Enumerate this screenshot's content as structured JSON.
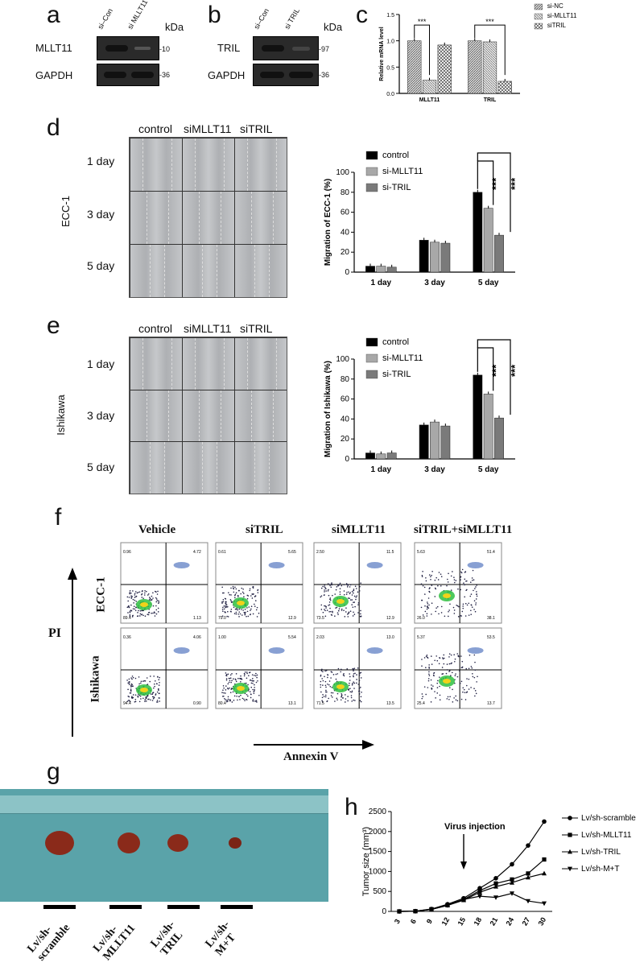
{
  "panels": {
    "a": "a",
    "b": "b",
    "c": "c",
    "d": "d",
    "e": "e",
    "f": "f",
    "g": "g",
    "h": "h"
  },
  "wb_a": {
    "lanes": [
      "si–Con",
      "si MLLT11"
    ],
    "kda": "kDa",
    "rows": [
      {
        "label": "MLLT11",
        "marker": "-10"
      },
      {
        "label": "GAPDH",
        "marker": "-36"
      }
    ]
  },
  "wb_b": {
    "lanes": [
      "si–Con",
      "si TRIL"
    ],
    "kda": "kDa",
    "rows": [
      {
        "label": "TRIL",
        "marker": "-97"
      },
      {
        "label": "GAPDH",
        "marker": "-36"
      }
    ]
  },
  "scratch_d": {
    "cols": [
      "control",
      "siMLLT11",
      "siTRIL"
    ],
    "rows": [
      "1 day",
      "3 day",
      "5 day"
    ],
    "side": "ECC-1"
  },
  "scratch_e": {
    "cols": [
      "control",
      "siMLLT11",
      "siTRIL"
    ],
    "rows": [
      "1 day",
      "3 day",
      "5 day"
    ],
    "side": "Ishikawa"
  },
  "flow": {
    "cols": [
      "Vehicle",
      "siTRIL",
      "siMLLT11",
      "siTRIL+siMLLT11"
    ],
    "rows": [
      "ECC-1",
      "Ishikawa"
    ],
    "yaxis": "PI",
    "xaxis": "Annexin V",
    "quadrants": [
      [
        [
          "0.96",
          "4.72",
          "1.13",
          "89.4"
        ],
        [
          "0.61",
          "5.65",
          "12.9",
          "79.0"
        ],
        [
          "2.50",
          "11.5",
          "12.9",
          "73.5"
        ],
        [
          "5.63",
          "51.4",
          "38.1",
          "26.0"
        ]
      ],
      [
        [
          "0.36",
          "4.06",
          "0.90",
          "94.4"
        ],
        [
          "1.00",
          "5.54",
          "13.1",
          "80.4"
        ],
        [
          "2.03",
          "13.0",
          "13.5",
          "71.5"
        ],
        [
          "5.37",
          "53.5",
          "13.7",
          "25.4"
        ]
      ]
    ]
  },
  "tumors": {
    "labels": [
      "Lv/sh-\nscramble",
      "Lv/sh-\nMLLT11",
      "Lv/sh-\nTRIL",
      "Lv/sh-\nM+T"
    ]
  },
  "chart_data": [
    {
      "id": "c",
      "type": "bar",
      "categories": [
        "MLLT11",
        "TRIL"
      ],
      "ylabel": "Relative mRNA level",
      "ylim": [
        0,
        1.5
      ],
      "series": [
        {
          "name": "si-NC",
          "values": [
            1.0,
            1.0
          ]
        },
        {
          "name": "si-MLLT11",
          "values": [
            0.25,
            0.98
          ]
        },
        {
          "name": "siTRIL",
          "values": [
            0.92,
            0.23
          ]
        }
      ],
      "annotations": [
        "***",
        "***"
      ]
    },
    {
      "id": "d",
      "type": "bar",
      "categories": [
        "1 day",
        "3 day",
        "5 day"
      ],
      "ylabel": "Migration of ECC-1 (%)",
      "ylim": [
        0,
        100
      ],
      "series": [
        {
          "name": "control",
          "values": [
            6,
            32,
            80
          ]
        },
        {
          "name": "si-MLLT11",
          "values": [
            6,
            30,
            64
          ]
        },
        {
          "name": "si-TRIL",
          "values": [
            5,
            29,
            37
          ]
        }
      ],
      "annotations": [
        "***",
        "***"
      ]
    },
    {
      "id": "e",
      "type": "bar",
      "categories": [
        "1 day",
        "3 day",
        "5 day"
      ],
      "ylabel": "Migration of Ishikawa (%)",
      "ylim": [
        0,
        100
      ],
      "series": [
        {
          "name": "control",
          "values": [
            6,
            34,
            84
          ]
        },
        {
          "name": "si-MLLT11",
          "values": [
            5,
            37,
            65
          ]
        },
        {
          "name": "si-TRIL",
          "values": [
            6,
            33,
            41
          ]
        }
      ],
      "annotations": [
        "***",
        "***"
      ]
    },
    {
      "id": "h",
      "type": "line",
      "x": [
        3,
        6,
        9,
        12,
        15,
        18,
        21,
        24,
        27,
        30
      ],
      "ylabel": "Tumor size (mm³)",
      "ylim": [
        0,
        2500
      ],
      "annotation": "Virus injection",
      "series": [
        {
          "name": "Lv/sh-scramble",
          "values": [
            0,
            5,
            60,
            180,
            330,
            580,
            830,
            1180,
            1650,
            2250
          ]
        },
        {
          "name": "Lv/sh-MLLT11",
          "values": [
            0,
            5,
            55,
            160,
            300,
            520,
            700,
            800,
            950,
            1300
          ]
        },
        {
          "name": "Lv/sh-TRIL",
          "values": [
            0,
            5,
            50,
            150,
            280,
            480,
            620,
            720,
            850,
            950
          ]
        },
        {
          "name": "Lv/sh-M+T",
          "values": [
            0,
            5,
            50,
            150,
            300,
            380,
            350,
            450,
            260,
            200
          ]
        }
      ]
    }
  ]
}
